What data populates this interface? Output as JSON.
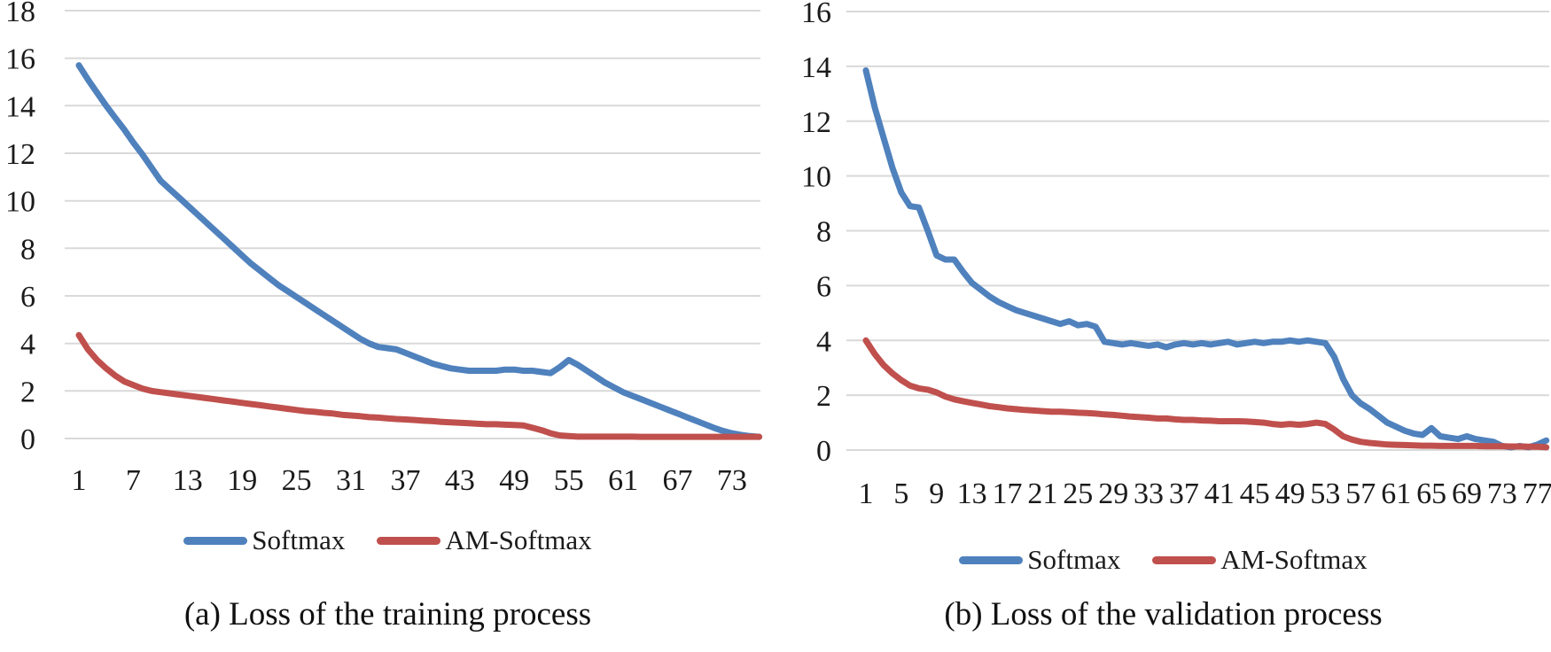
{
  "figure": {
    "background": "#ffffff",
    "text_color": "#1a1a1a",
    "gridline_color": "#d9d9d9"
  },
  "chart_data": [
    {
      "type": "line",
      "title": "(a) Loss of the training process",
      "xlabel": "",
      "ylabel": "",
      "x_range": [
        1,
        76
      ],
      "x_tick_labels": [
        "1",
        "7",
        "13",
        "19",
        "25",
        "31",
        "37",
        "43",
        "49",
        "55",
        "61",
        "67",
        "73"
      ],
      "y_ticks": [
        0,
        2,
        4,
        6,
        8,
        10,
        12,
        14,
        16,
        18
      ],
      "ylim": [
        0,
        18
      ],
      "grid": true,
      "legend_position": "bottom",
      "series": [
        {
          "name": "Softmax",
          "color": "#4F81BD",
          "values": [
            15.7,
            15.1,
            14.55,
            14.0,
            13.5,
            13.0,
            12.45,
            11.95,
            11.4,
            10.85,
            10.5,
            10.15,
            9.8,
            9.45,
            9.1,
            8.75,
            8.4,
            8.05,
            7.7,
            7.35,
            7.05,
            6.75,
            6.45,
            6.2,
            5.95,
            5.7,
            5.45,
            5.2,
            4.95,
            4.7,
            4.45,
            4.2,
            4.0,
            3.85,
            3.8,
            3.75,
            3.6,
            3.45,
            3.3,
            3.15,
            3.05,
            2.95,
            2.9,
            2.85,
            2.85,
            2.85,
            2.85,
            2.9,
            2.9,
            2.85,
            2.85,
            2.8,
            2.75,
            3.0,
            3.3,
            3.1,
            2.85,
            2.6,
            2.35,
            2.15,
            1.95,
            1.8,
            1.65,
            1.5,
            1.35,
            1.2,
            1.05,
            0.9,
            0.75,
            0.6,
            0.45,
            0.32,
            0.22,
            0.15,
            0.1,
            0.07
          ]
        },
        {
          "name": "AM-Softmax",
          "color": "#C0504D",
          "values": [
            4.35,
            3.75,
            3.3,
            2.95,
            2.65,
            2.4,
            2.25,
            2.1,
            2.0,
            1.95,
            1.9,
            1.85,
            1.8,
            1.75,
            1.7,
            1.65,
            1.6,
            1.55,
            1.5,
            1.45,
            1.4,
            1.35,
            1.3,
            1.25,
            1.2,
            1.15,
            1.12,
            1.08,
            1.05,
            1.0,
            0.97,
            0.94,
            0.9,
            0.88,
            0.85,
            0.82,
            0.8,
            0.78,
            0.75,
            0.73,
            0.7,
            0.68,
            0.66,
            0.64,
            0.62,
            0.6,
            0.6,
            0.58,
            0.57,
            0.55,
            0.45,
            0.35,
            0.22,
            0.13,
            0.1,
            0.08,
            0.08,
            0.08,
            0.08,
            0.08,
            0.08,
            0.08,
            0.07,
            0.07,
            0.07,
            0.07,
            0.07,
            0.07,
            0.07,
            0.07,
            0.07,
            0.07,
            0.07,
            0.07,
            0.07,
            0.07
          ]
        }
      ]
    },
    {
      "type": "line",
      "title": "(b) Loss of the validation process",
      "xlabel": "",
      "ylabel": "",
      "x_range": [
        1,
        78
      ],
      "x_tick_labels": [
        "1",
        "5",
        "9",
        "13",
        "17",
        "21",
        "25",
        "29",
        "33",
        "37",
        "41",
        "45",
        "49",
        "53",
        "57",
        "61",
        "65",
        "69",
        "73",
        "77"
      ],
      "y_ticks": [
        0,
        2,
        4,
        6,
        8,
        10,
        12,
        14,
        16
      ],
      "ylim": [
        0,
        16
      ],
      "grid": true,
      "legend_position": "bottom",
      "series": [
        {
          "name": "Softmax",
          "color": "#4F81BD",
          "values": [
            13.85,
            12.5,
            11.4,
            10.3,
            9.4,
            8.9,
            8.85,
            8.0,
            7.1,
            6.95,
            6.95,
            6.5,
            6.1,
            5.85,
            5.6,
            5.4,
            5.25,
            5.1,
            5.0,
            4.9,
            4.8,
            4.7,
            4.6,
            4.7,
            4.55,
            4.6,
            4.5,
            3.95,
            3.9,
            3.85,
            3.9,
            3.85,
            3.8,
            3.85,
            3.75,
            3.85,
            3.9,
            3.85,
            3.9,
            3.85,
            3.9,
            3.95,
            3.85,
            3.9,
            3.95,
            3.9,
            3.95,
            3.95,
            4.0,
            3.95,
            4.0,
            3.95,
            3.9,
            3.4,
            2.6,
            2.0,
            1.7,
            1.5,
            1.25,
            1.0,
            0.85,
            0.7,
            0.6,
            0.55,
            0.8,
            0.5,
            0.45,
            0.4,
            0.5,
            0.4,
            0.35,
            0.3,
            0.15,
            0.1,
            0.15,
            0.1,
            0.2,
            0.35
          ]
        },
        {
          "name": "AM-Softmax",
          "color": "#C0504D",
          "values": [
            4.0,
            3.5,
            3.1,
            2.8,
            2.55,
            2.35,
            2.25,
            2.2,
            2.1,
            1.95,
            1.85,
            1.78,
            1.72,
            1.66,
            1.6,
            1.56,
            1.52,
            1.49,
            1.46,
            1.44,
            1.42,
            1.4,
            1.4,
            1.38,
            1.36,
            1.35,
            1.33,
            1.3,
            1.28,
            1.25,
            1.22,
            1.2,
            1.18,
            1.15,
            1.15,
            1.12,
            1.1,
            1.1,
            1.08,
            1.07,
            1.05,
            1.05,
            1.05,
            1.04,
            1.02,
            1.0,
            0.95,
            0.92,
            0.95,
            0.92,
            0.95,
            1.0,
            0.95,
            0.75,
            0.5,
            0.38,
            0.3,
            0.26,
            0.23,
            0.2,
            0.19,
            0.18,
            0.17,
            0.16,
            0.16,
            0.15,
            0.15,
            0.15,
            0.15,
            0.15,
            0.14,
            0.14,
            0.14,
            0.13,
            0.13,
            0.12,
            0.12,
            0.1
          ]
        }
      ]
    }
  ]
}
